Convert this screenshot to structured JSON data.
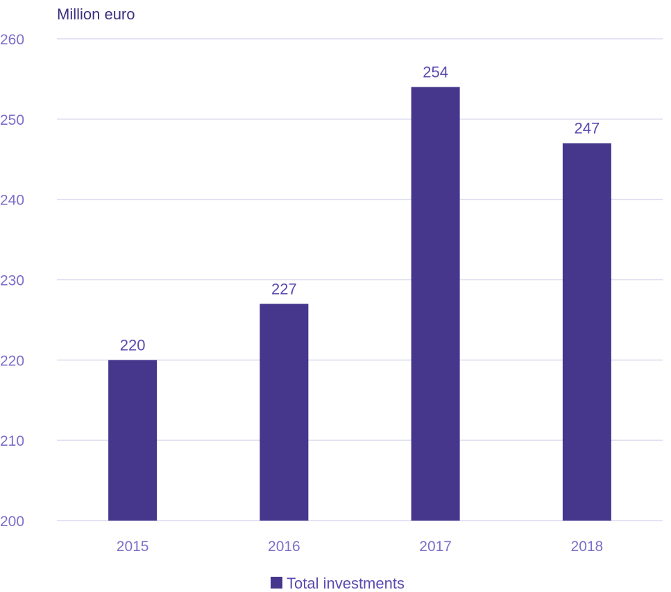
{
  "chart_data": {
    "type": "bar",
    "ylabel": "Million euro",
    "categories": [
      "2015",
      "2016",
      "2017",
      "2018"
    ],
    "series": [
      {
        "name": "Total investments",
        "values": [
          220,
          227,
          254,
          247
        ]
      }
    ],
    "data_labels": [
      "220",
      "227",
      "254",
      "247"
    ],
    "ylim": [
      200,
      260
    ],
    "yticks": [
      "200",
      "210",
      "220",
      "230",
      "240",
      "250",
      "260"
    ],
    "grid": true,
    "legend_position": "bottom",
    "colors": {
      "bar": "#46368c",
      "grid": "#dcdcef",
      "tick_text": "#7b6fc9",
      "label_text": "#5a4bb0",
      "unit_text": "#3d2f7f"
    }
  }
}
